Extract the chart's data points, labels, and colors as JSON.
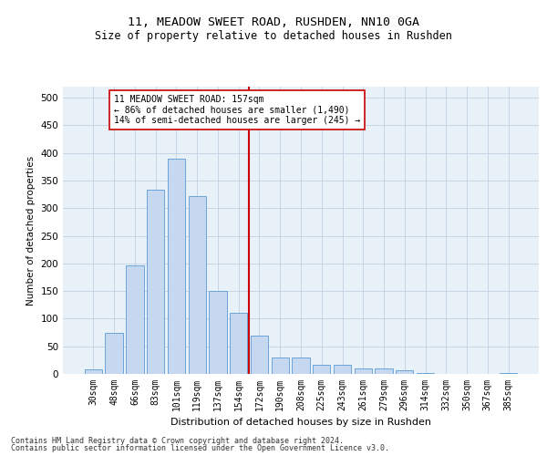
{
  "title_line1": "11, MEADOW SWEET ROAD, RUSHDEN, NN10 0GA",
  "title_line2": "Size of property relative to detached houses in Rushden",
  "xlabel": "Distribution of detached houses by size in Rushden",
  "ylabel": "Number of detached properties",
  "categories": [
    "30sqm",
    "48sqm",
    "66sqm",
    "83sqm",
    "101sqm",
    "119sqm",
    "137sqm",
    "154sqm",
    "172sqm",
    "190sqm",
    "208sqm",
    "225sqm",
    "243sqm",
    "261sqm",
    "279sqm",
    "296sqm",
    "314sqm",
    "332sqm",
    "350sqm",
    "367sqm",
    "385sqm"
  ],
  "values": [
    8,
    75,
    197,
    333,
    390,
    322,
    150,
    110,
    69,
    29,
    29,
    17,
    17,
    10,
    10,
    6,
    2,
    0,
    0,
    0,
    1
  ],
  "bar_color": "#c5d8f0",
  "bar_edge_color": "#5b9bd5",
  "vline_x_index": 7,
  "vline_color": "#cc0000",
  "annotation_text": "11 MEADOW SWEET ROAD: 157sqm\n← 86% of detached houses are smaller (1,490)\n14% of semi-detached houses are larger (245) →",
  "annotation_box_color": "#ffffff",
  "annotation_box_edge_color": "#cc0000",
  "ylim": [
    0,
    520
  ],
  "yticks": [
    0,
    50,
    100,
    150,
    200,
    250,
    300,
    350,
    400,
    450,
    500
  ],
  "footer_line1": "Contains HM Land Registry data © Crown copyright and database right 2024.",
  "footer_line2": "Contains public sector information licensed under the Open Government Licence v3.0.",
  "bg_color": "#ffffff",
  "axes_bg_color": "#e8f0f8",
  "grid_color": "#c0cfe0"
}
